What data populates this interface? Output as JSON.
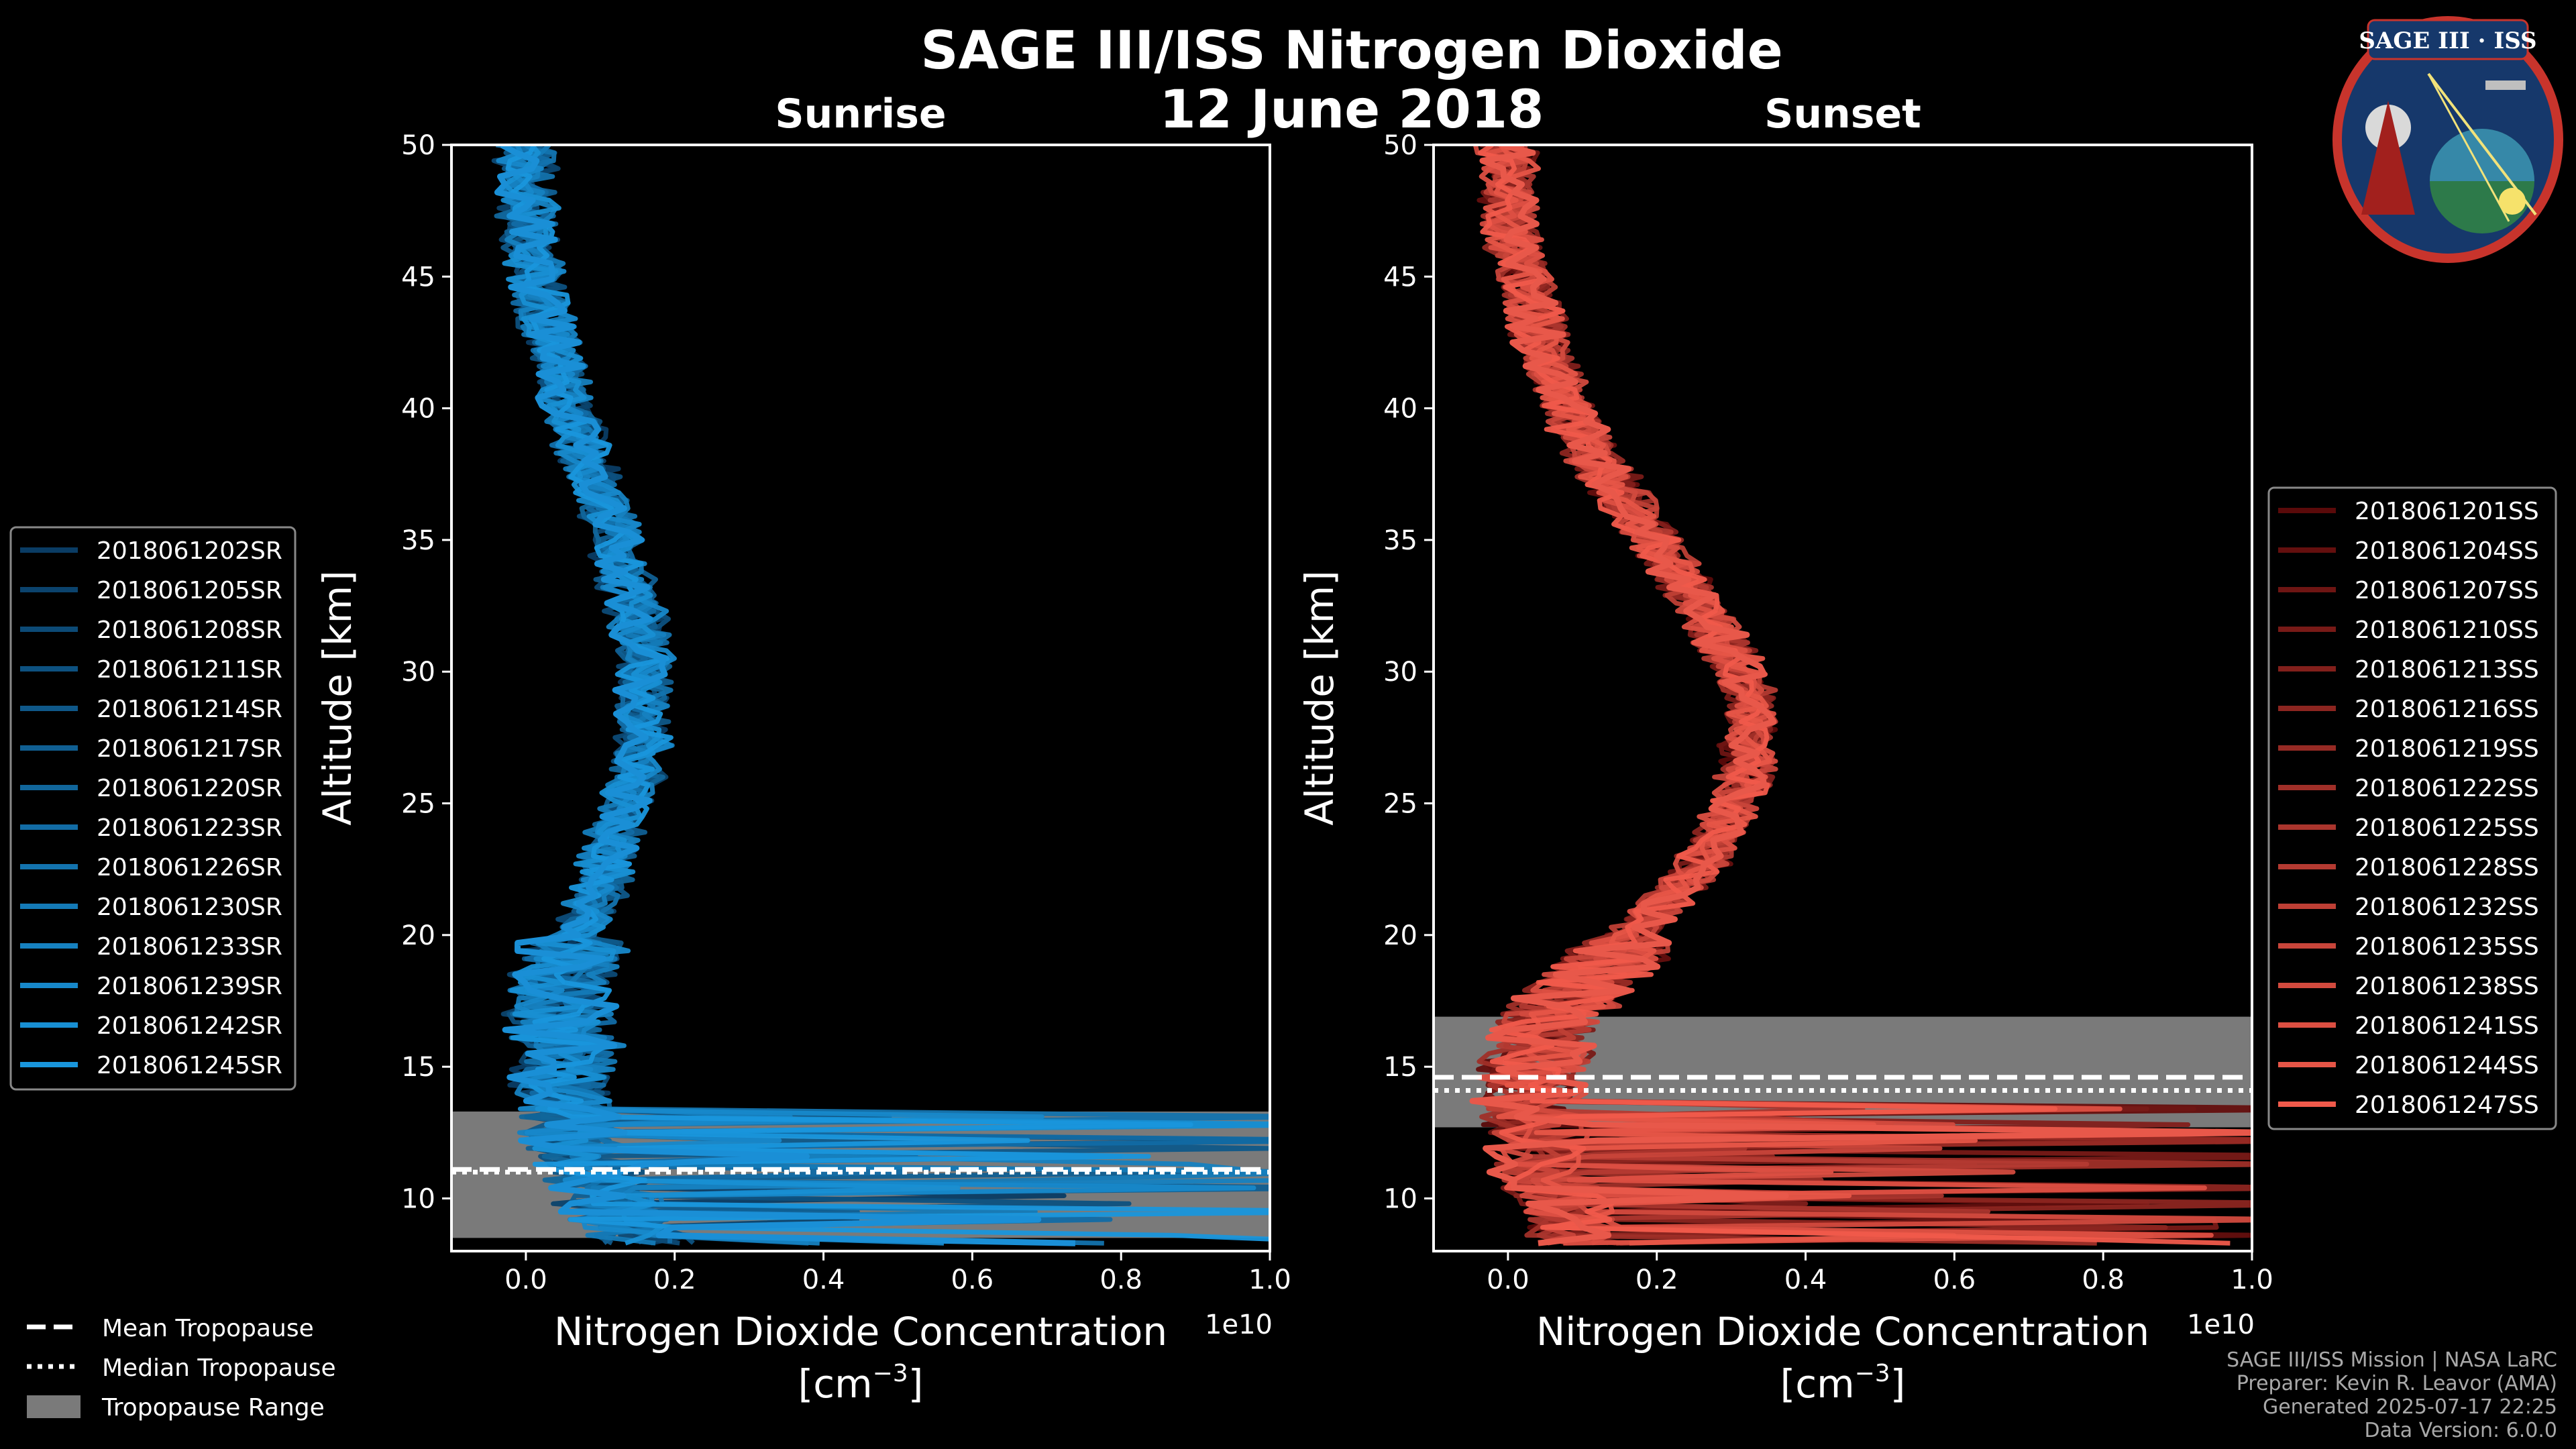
{
  "title": "SAGE III/ISS Nitrogen Dioxide",
  "date": "12 June 2018",
  "logo": {
    "text": "SAGE III · ISS"
  },
  "colors": {
    "sunrise": "#1a8fd6",
    "sunset": "#e8584a",
    "tropo_range": "#7a7a7a"
  },
  "footer": {
    "line1": "SAGE III/ISS Mission | NASA LaRC",
    "line2": "Preparer: Kevin R. Leavor (AMA)",
    "line3": "Generated 2025-07-17 22:25",
    "line4": "Data Version: 6.0.0"
  },
  "tropo_legend": {
    "mean": "Mean Tropopause",
    "median": "Median Tropopause",
    "range": "Tropopause Range"
  },
  "chart_data": [
    {
      "type": "line",
      "title": "Sunrise",
      "xlabel": "Nitrogen Dioxide Concentration",
      "xlabel_unit": "[cm",
      "xlabel_exp": "−3",
      "xlabel_close": "]",
      "ylabel": "Altitude [km]",
      "offset_text": "1e10",
      "xlim": [
        -0.1,
        1.0
      ],
      "ylim": [
        8,
        50
      ],
      "xticks": [
        0.0,
        0.2,
        0.4,
        0.6,
        0.8,
        1.0
      ],
      "xtick_labels": [
        "0.0",
        "0.2",
        "0.4",
        "0.6",
        "0.8",
        "1.0"
      ],
      "yticks": [
        10,
        15,
        20,
        25,
        30,
        35,
        40,
        45,
        50
      ],
      "tropopause": {
        "mean": 11.1,
        "median": 11.0,
        "range": [
          8.5,
          13.3
        ]
      },
      "legend_items": [
        "2018061202SR",
        "2018061205SR",
        "2018061208SR",
        "2018061211SR",
        "2018061214SR",
        "2018061217SR",
        "2018061220SR",
        "2018061223SR",
        "2018061226SR",
        "2018061230SR",
        "2018061233SR",
        "2018061239SR",
        "2018061242SR",
        "2018061245SR"
      ],
      "profile_mean": {
        "alt": [
          8.5,
          9.5,
          10.5,
          11.5,
          12.5,
          13.5,
          14.5,
          15.5,
          16.5,
          17.5,
          18.5,
          20,
          22,
          24,
          26,
          28,
          30,
          32,
          34,
          36,
          38,
          40,
          42,
          44,
          46,
          48,
          50
        ],
        "no2": [
          0.15,
          0.12,
          0.1,
          0.08,
          0.06,
          0.05,
          0.05,
          0.06,
          0.05,
          0.04,
          0.05,
          0.07,
          0.1,
          0.12,
          0.15,
          0.16,
          0.16,
          0.15,
          0.13,
          0.11,
          0.08,
          0.06,
          0.04,
          0.02,
          0.01,
          0.0,
          0.0
        ]
      }
    },
    {
      "type": "line",
      "title": "Sunset",
      "xlabel": "Nitrogen Dioxide Concentration",
      "xlabel_unit": "[cm",
      "xlabel_exp": "−3",
      "xlabel_close": "]",
      "ylabel": "Altitude [km]",
      "offset_text": "1e10",
      "xlim": [
        -0.1,
        1.0
      ],
      "ylim": [
        8,
        50
      ],
      "xticks": [
        0.0,
        0.2,
        0.4,
        0.6,
        0.8,
        1.0
      ],
      "xtick_labels": [
        "0.0",
        "0.2",
        "0.4",
        "0.6",
        "0.8",
        "1.0"
      ],
      "yticks": [
        10,
        15,
        20,
        25,
        30,
        35,
        40,
        45,
        50
      ],
      "tropopause": {
        "mean": 14.6,
        "median": 14.1,
        "range": [
          12.7,
          16.9
        ]
      },
      "legend_items": [
        "2018061201SS",
        "2018061204SS",
        "2018061207SS",
        "2018061210SS",
        "2018061213SS",
        "2018061216SS",
        "2018061219SS",
        "2018061222SS",
        "2018061225SS",
        "2018061228SS",
        "2018061232SS",
        "2018061235SS",
        "2018061238SS",
        "2018061241SS",
        "2018061244SS",
        "2018061247SS"
      ],
      "profile_mean": {
        "alt": [
          8.5,
          9.5,
          10.5,
          11.5,
          12.5,
          13.5,
          14.5,
          15.5,
          16.5,
          17.5,
          18.5,
          20,
          22,
          24,
          26,
          28,
          30,
          32,
          34,
          36,
          38,
          40,
          42,
          44,
          46,
          48,
          50
        ],
        "no2": [
          0.1,
          0.08,
          0.06,
          0.05,
          0.04,
          0.03,
          0.03,
          0.04,
          0.05,
          0.08,
          0.12,
          0.17,
          0.24,
          0.29,
          0.32,
          0.33,
          0.31,
          0.27,
          0.22,
          0.17,
          0.12,
          0.08,
          0.05,
          0.03,
          0.01,
          0.0,
          0.0
        ]
      }
    }
  ]
}
